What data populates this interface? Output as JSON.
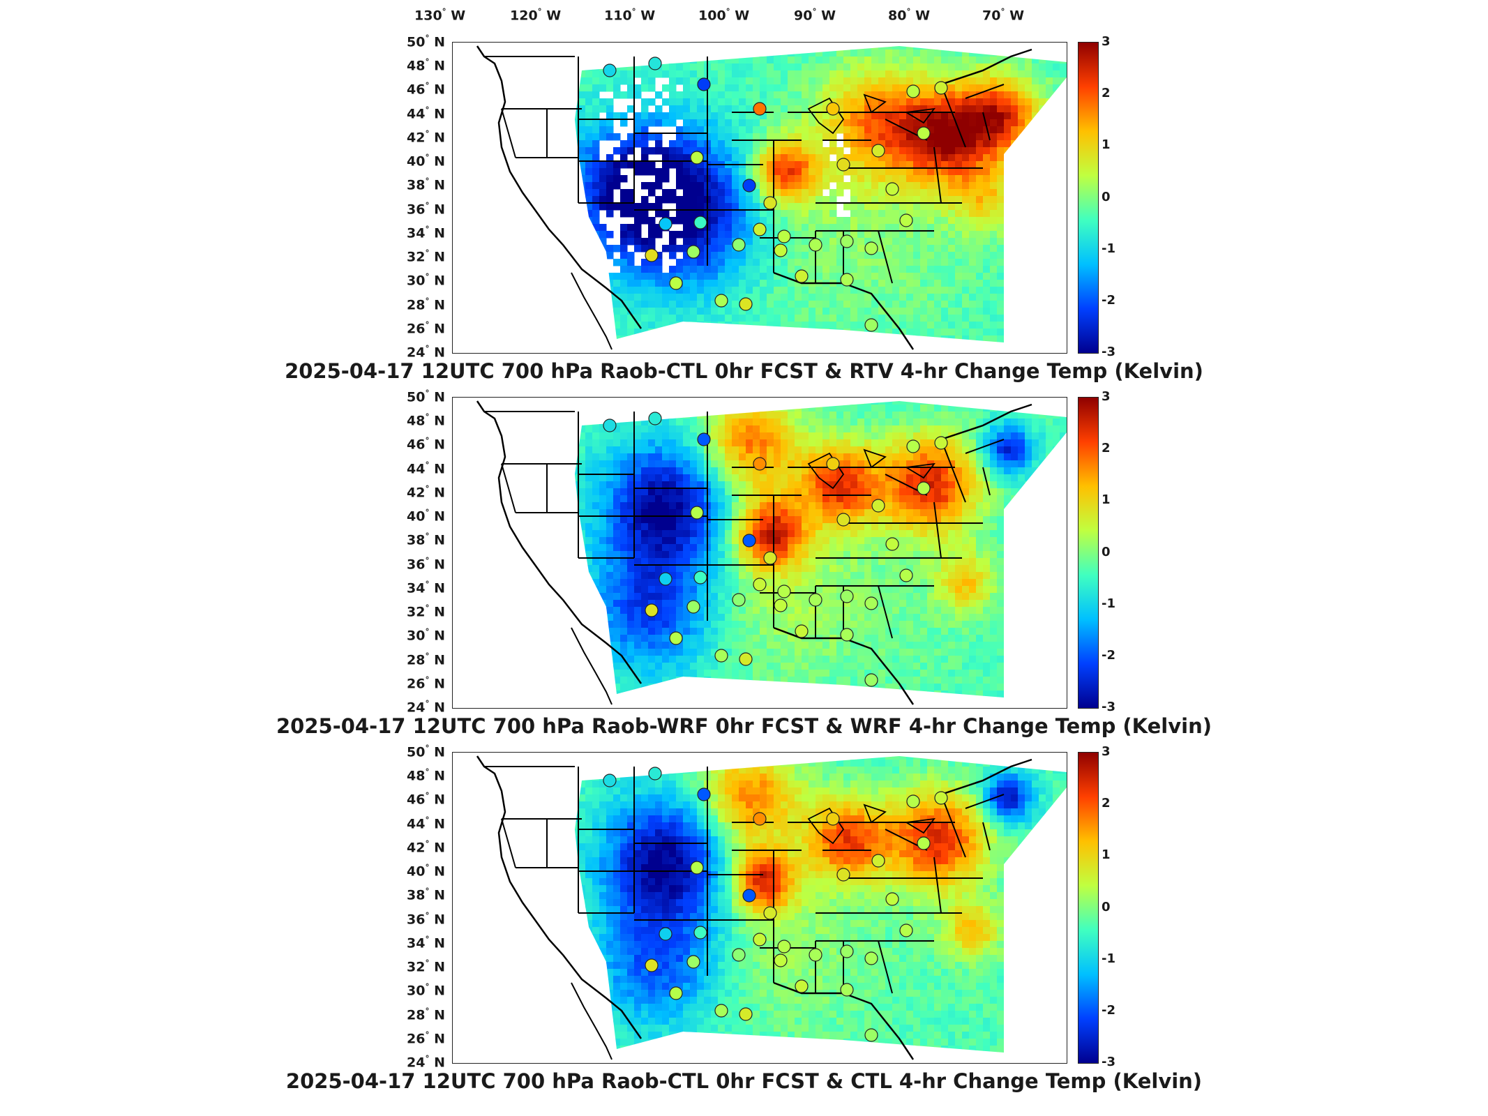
{
  "lon_labels": [
    "130° W",
    "120° W",
    "110° W",
    "100° W",
    "90° W",
    "80° W",
    "70° W"
  ],
  "lat_labels": [
    "50° N",
    "48° N",
    "46° N",
    "44° N",
    "42° N",
    "40° N",
    "38° N",
    "36° N",
    "34° N",
    "32° N",
    "30° N",
    "28° N",
    "26° N",
    "24° N"
  ],
  "colorbar": {
    "ticks": [
      "3",
      "2",
      "1",
      "0",
      "-1",
      "-2",
      "-3"
    ],
    "range": [
      -3,
      3
    ],
    "colors": [
      "#00008f",
      "#0040ff",
      "#00c0ff",
      "#40ffc0",
      "#c0ff40",
      "#ffc000",
      "#ff4000",
      "#8f0000"
    ]
  },
  "panels": [
    {
      "title": "2025-04-17 12UTC 700 hPa Raob-CTL 0hr FCST & RTV 4-hr Change Temp (Kelvin)",
      "variant": "rtv"
    },
    {
      "title": "2025-04-17 12UTC 700 hPa Raob-WRF 0hr FCST & WRF 4-hr Change Temp (Kelvin)",
      "variant": "wrf"
    },
    {
      "title": "2025-04-17 12UTC 700 hPa Raob-CTL 0hr FCST & CTL 4-hr Change Temp (Kelvin)",
      "variant": "ctl"
    }
  ]
}
